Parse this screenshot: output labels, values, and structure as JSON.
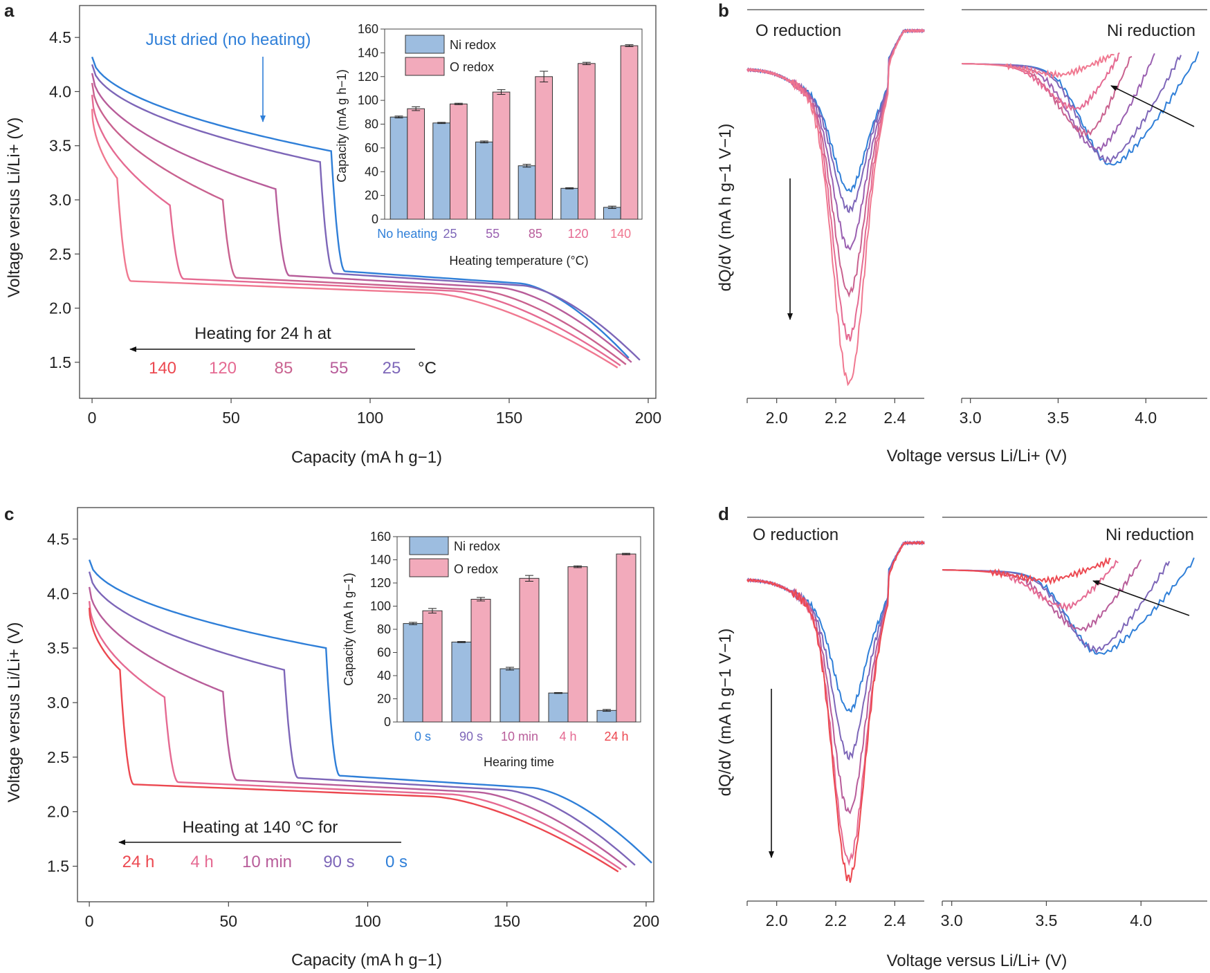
{
  "colors": {
    "blue": "#2f7fd8",
    "purple_dark": "#7d66b8",
    "purple": "#9a5fb0",
    "magenta": "#b85d9a",
    "pink": "#e56a92",
    "red": "#ec4850",
    "bar_ni": "#9dbde0",
    "bar_o": "#f2aabb"
  },
  "panels": {
    "a": {
      "label": "a",
      "xlabel": "Capacity (mA h g−1)",
      "ylabel": "Voltage versus Li/Li+ (V)",
      "xticks": [
        "0",
        "50",
        "100",
        "150",
        "200"
      ],
      "yticks": [
        "1.5",
        "2.0",
        "2.5",
        "3.0",
        "3.5",
        "4.0",
        "4.5"
      ],
      "annotation_top": "Just dried (no heating)",
      "arrow_text": "Heating for 24 h at",
      "series_labels": [
        "140",
        "120",
        "85",
        "55",
        "25"
      ],
      "unit": "°C",
      "inset": {
        "ylabel": "Capacity (mA g h−1)",
        "xlabel": "Heating temperature (°C)",
        "legend": [
          "Ni redox",
          "O redox"
        ],
        "categories": [
          "No heating",
          "25",
          "55",
          "85",
          "120",
          "140"
        ],
        "yticks": [
          "0",
          "20",
          "40",
          "60",
          "80",
          "100",
          "120",
          "140",
          "160"
        ]
      }
    },
    "b": {
      "label": "b",
      "ylabel": "dQ/dV (mA h g−1 V−1)",
      "xlabel": "Voltage versus Li/Li+ (V)",
      "left_title": "O reduction",
      "right_title": "Ni reduction",
      "xticks_left": [
        "2.0",
        "2.2",
        "2.4"
      ],
      "xticks_right": [
        "3.0",
        "3.5",
        "4.0"
      ]
    },
    "c": {
      "label": "c",
      "xlabel": "Capacity (mA h g−1)",
      "ylabel": "Voltage versus Li/Li+ (V)",
      "xticks": [
        "0",
        "50",
        "100",
        "150",
        "200"
      ],
      "yticks": [
        "1.5",
        "2.0",
        "2.5",
        "3.0",
        "3.5",
        "4.0",
        "4.5"
      ],
      "arrow_text": "Heating at 140 °C for",
      "series_labels": [
        "24 h",
        "4 h",
        "10 min",
        "90 s",
        "0 s"
      ],
      "inset": {
        "ylabel": "Capacity (mA h g−1)",
        "xlabel": "Hearing time",
        "legend": [
          "Ni redox",
          "O redox"
        ],
        "categories": [
          "0 s",
          "90 s",
          "10 min",
          "4 h",
          "24 h"
        ],
        "yticks": [
          "0",
          "20",
          "40",
          "60",
          "80",
          "100",
          "120",
          "140",
          "160"
        ]
      }
    },
    "d": {
      "label": "d",
      "ylabel": "dQ/dV (mA h g−1 V−1)",
      "xlabel": "Voltage versus Li/Li+ (V)",
      "left_title": "O reduction",
      "right_title": "Ni reduction",
      "xticks_left": [
        "2.0",
        "2.2",
        "2.4"
      ],
      "xticks_right": [
        "3.0",
        "3.5",
        "4.0"
      ]
    }
  },
  "chart_data": [
    {
      "panel": "a",
      "type": "line",
      "xlabel": "Capacity (mA h g−1)",
      "ylabel": "Voltage versus Li/Li+ (V)",
      "xlim": [
        -4,
        202
      ],
      "ylim": [
        1.25,
        4.75
      ],
      "series": [
        {
          "name": "No heating",
          "color": "#2f7fd8",
          "start": 4.32,
          "plateau_end": 86,
          "plateau_v": 3.45,
          "low_start": 2.34,
          "end_cap": 193
        },
        {
          "name": "25",
          "color": "#7d66b8",
          "start": 4.25,
          "plateau_end": 82,
          "plateau_v": 3.35,
          "low_start": 2.32,
          "end_cap": 197
        },
        {
          "name": "55",
          "color": "#b85d9a",
          "start": 4.17,
          "plateau_end": 66,
          "plateau_v": 3.1,
          "low_start": 2.3,
          "end_cap": 194
        },
        {
          "name": "85",
          "color": "#c9628f",
          "start": 4.08,
          "plateau_end": 47,
          "plateau_v": 3.0,
          "low_start": 2.28,
          "end_cap": 192
        },
        {
          "name": "120",
          "color": "#e56a92",
          "start": 3.97,
          "plateau_end": 28,
          "plateau_v": 2.95,
          "low_start": 2.27,
          "end_cap": 190
        },
        {
          "name": "140",
          "color": "#f07890",
          "start": 3.84,
          "plateau_end": 9,
          "plateau_v": 3.2,
          "low_start": 2.25,
          "end_cap": 189
        }
      ]
    },
    {
      "panel": "a-inset",
      "type": "bar",
      "categories": [
        "No heating",
        "25",
        "55",
        "85",
        "120",
        "140"
      ],
      "xlabel": "Heating temperature (°C)",
      "ylabel": "Capacity (mA g h−1)",
      "ylim": [
        0,
        160
      ],
      "series": [
        {
          "name": "Ni redox",
          "values": [
            86,
            81,
            65,
            45,
            26,
            10
          ],
          "errors": [
            0.8,
            0.5,
            0.8,
            1.2,
            0.5,
            1.0
          ]
        },
        {
          "name": "O redox",
          "values": [
            93,
            97,
            107,
            120,
            131,
            146
          ],
          "errors": [
            1.6,
            0.6,
            2.0,
            4.5,
            1.0,
            0.8
          ]
        }
      ]
    },
    {
      "panel": "b",
      "type": "line",
      "xlabel": "Voltage versus Li/Li+ (V)",
      "ylabel": "dQ/dV (mA h g−1 V−1)",
      "xlim_left": [
        1.9,
        2.5
      ],
      "xlim_right": [
        2.95,
        4.35
      ],
      "series": [
        {
          "name": "No heating",
          "color": "#2f7fd8",
          "o_depth": 0.3,
          "ni_min_v": 3.8,
          "ni_depth": 0.44,
          "end_v": 4.3
        },
        {
          "name": "25",
          "color": "#7d66b8",
          "o_depth": 0.36,
          "ni_min_v": 3.78,
          "ni_depth": 0.42,
          "end_v": 4.2
        },
        {
          "name": "55",
          "color": "#9a5fb0",
          "o_depth": 0.48,
          "ni_min_v": 3.72,
          "ni_depth": 0.37,
          "end_v": 4.05
        },
        {
          "name": "85",
          "color": "#c9628f",
          "o_depth": 0.62,
          "ni_min_v": 3.66,
          "ni_depth": 0.3,
          "end_v": 3.92
        },
        {
          "name": "120",
          "color": "#e56a92",
          "o_depth": 0.76,
          "ni_min_v": 3.6,
          "ni_depth": 0.19,
          "end_v": 3.85
        },
        {
          "name": "140",
          "color": "#f07890",
          "o_depth": 0.9,
          "ni_min_v": 3.5,
          "ni_depth": 0.04,
          "end_v": 3.82
        }
      ]
    },
    {
      "panel": "c",
      "type": "line",
      "xlabel": "Capacity (mA h g−1)",
      "ylabel": "Voltage versus Li/Li+ (V)",
      "xlim": [
        -4,
        202
      ],
      "ylim": [
        1.25,
        4.75
      ],
      "series": [
        {
          "name": "0 s",
          "color": "#2f7fd8",
          "start": 4.31,
          "plateau_end": 85,
          "plateau_v": 3.5,
          "low_start": 2.33,
          "end_cap": 202
        },
        {
          "name": "90 s",
          "color": "#7d66b8",
          "start": 4.2,
          "plateau_end": 70,
          "plateau_v": 3.3,
          "low_start": 2.31,
          "end_cap": 196
        },
        {
          "name": "10 min",
          "color": "#b85d9a",
          "start": 4.06,
          "plateau_end": 48,
          "plateau_v": 3.1,
          "low_start": 2.29,
          "end_cap": 193
        },
        {
          "name": "4 h",
          "color": "#e56a92",
          "start": 3.93,
          "plateau_end": 27,
          "plateau_v": 3.05,
          "low_start": 2.27,
          "end_cap": 191
        },
        {
          "name": "24 h",
          "color": "#ec4850",
          "start": 3.87,
          "plateau_end": 11,
          "plateau_v": 3.3,
          "low_start": 2.25,
          "end_cap": 190
        }
      ]
    },
    {
      "panel": "c-inset",
      "type": "bar",
      "categories": [
        "0 s",
        "90 s",
        "10 min",
        "4 h",
        "24 h"
      ],
      "xlabel": "Hearing time",
      "ylabel": "Capacity (mA h g−1)",
      "ylim": [
        0,
        160
      ],
      "series": [
        {
          "name": "Ni redox",
          "values": [
            85,
            69,
            46,
            25,
            10
          ],
          "errors": [
            1.0,
            0.5,
            1.2,
            0.4,
            0.8
          ]
        },
        {
          "name": "O redox",
          "values": [
            96,
            106,
            124,
            134,
            145
          ],
          "errors": [
            2.0,
            1.5,
            2.5,
            0.8,
            0.6
          ]
        }
      ]
    },
    {
      "panel": "d",
      "type": "line",
      "xlabel": "Voltage versus Li/Li+ (V)",
      "ylabel": "dQ/dV (mA h g−1 V−1)",
      "xlim_left": [
        1.9,
        2.5
      ],
      "xlim_right": [
        2.95,
        4.35
      ],
      "series": [
        {
          "name": "0 s",
          "color": "#2f7fd8",
          "o_depth": 0.35,
          "ni_min_v": 3.78,
          "ni_depth": 0.4,
          "end_v": 4.28
        },
        {
          "name": "90 s",
          "color": "#7d66b8",
          "o_depth": 0.5,
          "ni_min_v": 3.76,
          "ni_depth": 0.38,
          "end_v": 4.15
        },
        {
          "name": "10 min",
          "color": "#b85d9a",
          "o_depth": 0.68,
          "ni_min_v": 3.68,
          "ni_depth": 0.28,
          "end_v": 4.0
        },
        {
          "name": "4 h",
          "color": "#e56a92",
          "o_depth": 0.84,
          "ni_min_v": 3.6,
          "ni_depth": 0.17,
          "end_v": 3.88
        },
        {
          "name": "24 h",
          "color": "#ec4850",
          "o_depth": 0.9,
          "ni_min_v": 3.5,
          "ni_depth": 0.04,
          "end_v": 3.84
        }
      ]
    }
  ]
}
